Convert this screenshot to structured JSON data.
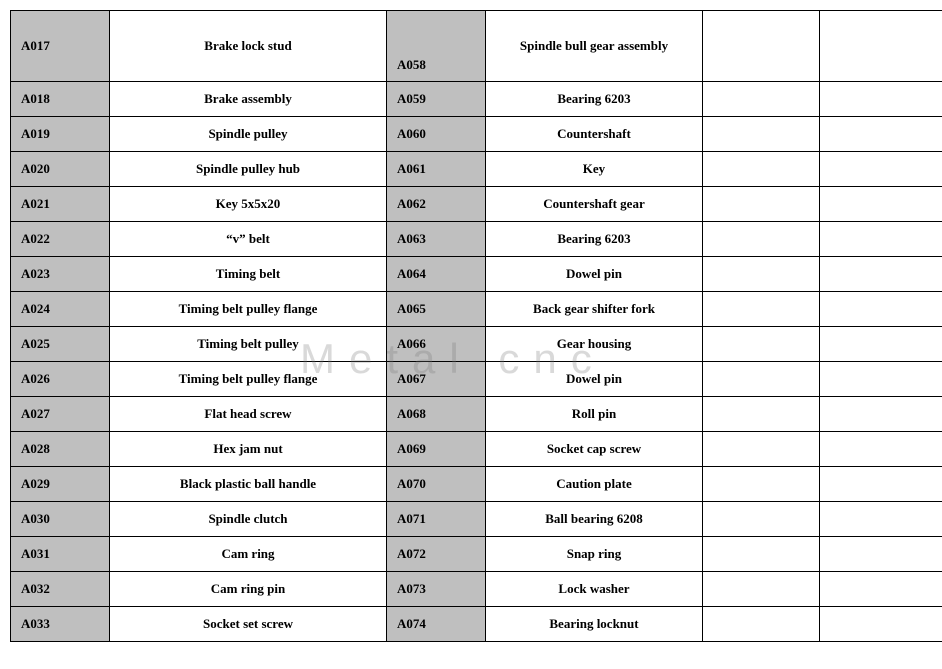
{
  "watermark": "Metal cnc",
  "table": {
    "background_shaded": "#bfbfbf",
    "background_plain": "#ffffff",
    "border_color": "#000000",
    "text_color": "#000000",
    "font_family": "Times New Roman",
    "font_size_pt": 10,
    "font_weight": "bold",
    "rows": [
      {
        "codeA": "A017",
        "descA": "Brake lock stud",
        "codeB": "A058",
        "descB": "Spindle bull gear assembly",
        "tall": true
      },
      {
        "codeA": "A018",
        "descA": "Brake assembly",
        "codeB": "A059",
        "descB": "Bearing 6203"
      },
      {
        "codeA": "A019",
        "descA": "Spindle pulley",
        "codeB": "A060",
        "descB": "Countershaft"
      },
      {
        "codeA": "A020",
        "descA": "Spindle pulley hub",
        "codeB": "A061",
        "descB": "Key"
      },
      {
        "codeA": "A021",
        "descA": "Key 5x5x20",
        "codeB": "A062",
        "descB": "Countershaft gear"
      },
      {
        "codeA": "A022",
        "descA": "“v” belt",
        "codeB": "A063",
        "descB": "Bearing 6203"
      },
      {
        "codeA": "A023",
        "descA": "Timing belt",
        "codeB": "A064",
        "descB": "Dowel pin"
      },
      {
        "codeA": "A024",
        "descA": "Timing belt pulley flange",
        "codeB": "A065",
        "descB": "Back gear shifter fork"
      },
      {
        "codeA": "A025",
        "descA": "Timing belt pulley",
        "codeB": "A066",
        "descB": "Gear housing"
      },
      {
        "codeA": "A026",
        "descA": "Timing belt pulley flange",
        "codeB": "A067",
        "descB": "Dowel pin"
      },
      {
        "codeA": "A027",
        "descA": "Flat head screw",
        "codeB": "A068",
        "descB": "Roll pin"
      },
      {
        "codeA": "A028",
        "descA": "Hex jam nut",
        "codeB": "A069",
        "descB": "Socket cap screw"
      },
      {
        "codeA": "A029",
        "descA": "Black plastic ball handle",
        "codeB": "A070",
        "descB": "Caution plate"
      },
      {
        "codeA": "A030",
        "descA": "Spindle clutch",
        "codeB": "A071",
        "descB": "Ball bearing 6208"
      },
      {
        "codeA": "A031",
        "descA": "Cam ring",
        "codeB": "A072",
        "descB": "Snap ring"
      },
      {
        "codeA": "A032",
        "descA": "Cam ring pin",
        "codeB": "A073",
        "descB": "Lock washer"
      },
      {
        "codeA": "A033",
        "descA": "Socket set screw",
        "codeB": "A074",
        "descB": "Bearing locknut"
      }
    ]
  }
}
